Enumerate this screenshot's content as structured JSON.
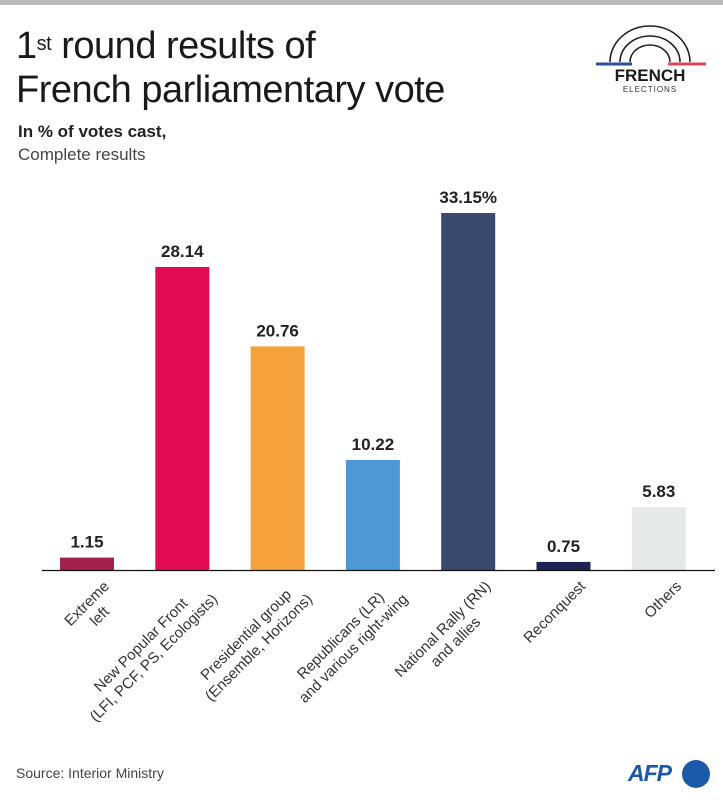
{
  "title_line1_pre": "1",
  "title_line1_sup": "st",
  "title_line1_post": " round results of",
  "title_line2": "French parliamentary vote",
  "subtitle": "In % of votes cast,",
  "subtitle2": "Complete results",
  "logo": {
    "text1": "FRENCH",
    "text2": "ELECTIONS"
  },
  "source": "Source: Interior Ministry",
  "agency": "AFP",
  "chart_data": {
    "type": "bar",
    "categories": [
      [
        "Extreme",
        "left"
      ],
      [
        "New Popular Front",
        "(LFI, PCF, PS, Ecologists)"
      ],
      [
        "Presidential group",
        "(Ensemble, Horizons)"
      ],
      [
        "Republicans (LR)",
        "and various right-wing"
      ],
      [
        "National Rally (RN)",
        "and allies"
      ],
      [
        "Reconquest"
      ],
      [
        "Others"
      ]
    ],
    "values": [
      1.15,
      28.14,
      20.76,
      10.22,
      33.15,
      0.75,
      5.83
    ],
    "data_labels": [
      "1.15",
      "28.14",
      "20.76",
      "10.22",
      "33.15%",
      "0.75",
      "5.83"
    ],
    "colors": [
      "#a3204a",
      "#e30b54",
      "#f5a23c",
      "#4f98d6",
      "#3a4a6e",
      "#1e2450",
      "#e6e9ea"
    ],
    "ylabel": "In % of votes cast",
    "ylim": [
      0,
      33.15
    ]
  }
}
